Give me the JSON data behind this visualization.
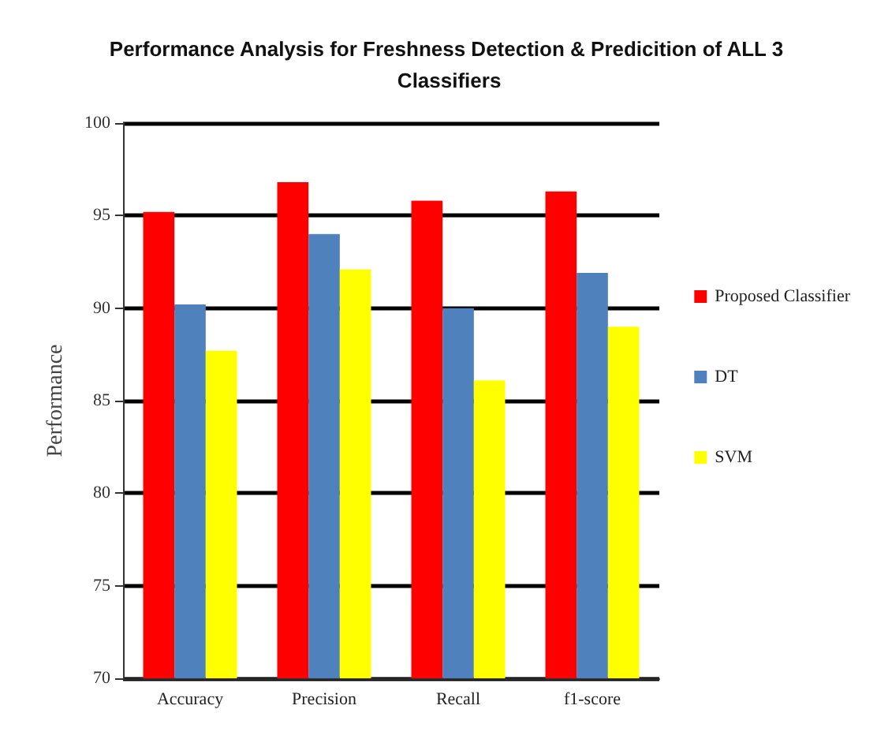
{
  "chart_data": {
    "type": "bar",
    "title": "Performance Analysis for Freshness Detection & Predicition of ALL 3 Classifiers",
    "ylabel": "Performance",
    "categories": [
      "Accuracy",
      "Precision",
      "Recall",
      "f1-score"
    ],
    "series": [
      {
        "name": "Proposed Classifier",
        "color": "#ff0000",
        "values": [
          95.2,
          96.8,
          95.8,
          96.3
        ]
      },
      {
        "name": "DT",
        "color": "#4f81bd",
        "values": [
          90.2,
          94.0,
          90.0,
          91.9
        ]
      },
      {
        "name": "SVM",
        "color": "#ffff00",
        "values": [
          87.7,
          92.1,
          86.1,
          89.0
        ]
      }
    ],
    "ylim": [
      70,
      100
    ],
    "yticks": [
      70,
      75,
      80,
      85,
      90,
      95,
      100
    ],
    "grid": "y",
    "legend": "right"
  }
}
